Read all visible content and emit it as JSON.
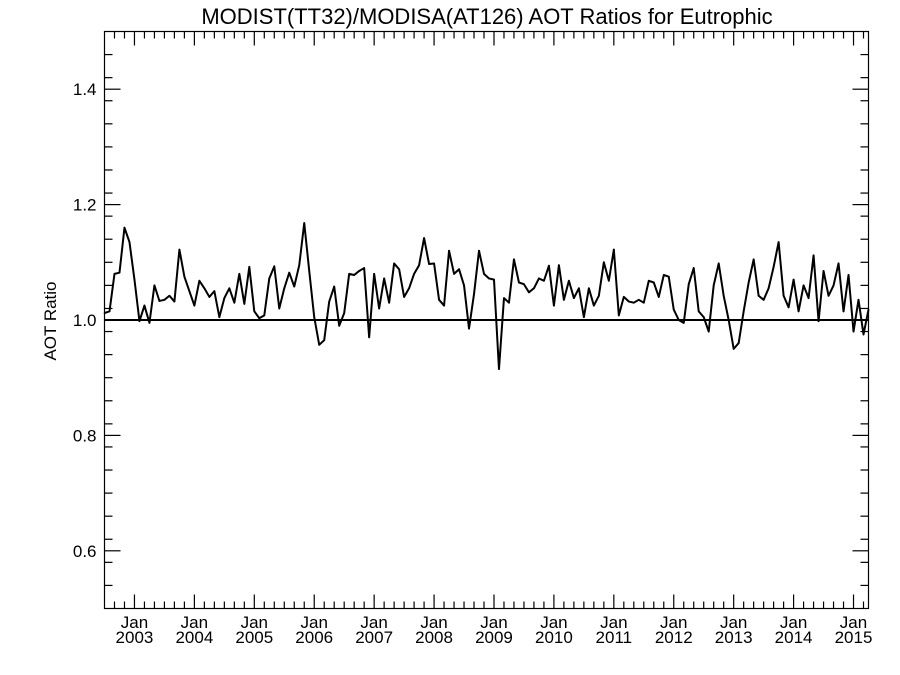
{
  "chart_data": {
    "type": "line",
    "title": "MODIST(TT32)/MODISA(AT126)  AOT Ratios for Eutrophic",
    "xlabel": "",
    "ylabel": "AOT Ratio",
    "xlim": [
      "2002-07",
      "2015-04"
    ],
    "ylim": [
      0.5,
      1.5
    ],
    "grid": false,
    "reference_line": 1.0,
    "y_ticks": [
      {
        "value": 0.6,
        "label": "0.6"
      },
      {
        "value": 0.8,
        "label": "0.8"
      },
      {
        "value": 1.0,
        "label": "1.0"
      },
      {
        "value": 1.2,
        "label": "1.2"
      },
      {
        "value": 1.4,
        "label": "1.4"
      }
    ],
    "x_ticks": [
      {
        "value": "2003-01",
        "month": "Jan",
        "year": "2003"
      },
      {
        "value": "2004-01",
        "month": "Jan",
        "year": "2004"
      },
      {
        "value": "2005-01",
        "month": "Jan",
        "year": "2005"
      },
      {
        "value": "2006-01",
        "month": "Jan",
        "year": "2006"
      },
      {
        "value": "2007-01",
        "month": "Jan",
        "year": "2007"
      },
      {
        "value": "2008-01",
        "month": "Jan",
        "year": "2008"
      },
      {
        "value": "2009-01",
        "month": "Jan",
        "year": "2009"
      },
      {
        "value": "2010-01",
        "month": "Jan",
        "year": "2010"
      },
      {
        "value": "2011-01",
        "month": "Jan",
        "year": "2011"
      },
      {
        "value": "2012-01",
        "month": "Jan",
        "year": "2012"
      },
      {
        "value": "2013-01",
        "month": "Jan",
        "year": "2013"
      },
      {
        "value": "2014-01",
        "month": "Jan",
        "year": "2014"
      },
      {
        "value": "2015-01",
        "month": "Jan",
        "year": "2015"
      }
    ],
    "series": [
      {
        "start": "2002-07",
        "values": [
          1.012,
          1.015,
          1.08,
          1.082,
          1.16,
          1.135,
          1.07,
          0.998,
          1.025,
          0.995,
          1.06,
          1.033,
          1.035,
          1.042,
          1.032,
          1.122,
          1.075,
          1.05,
          1.025,
          1.068,
          1.055,
          1.04,
          1.05,
          1.005,
          1.038,
          1.055,
          1.03,
          1.08,
          1.028,
          1.092,
          1.015,
          1.003,
          1.008,
          1.072,
          1.093,
          1.02,
          1.055,
          1.082,
          1.058,
          1.095,
          1.168,
          1.085,
          1.005,
          0.957,
          0.965,
          1.032,
          1.058,
          0.99,
          1.012,
          1.08,
          1.078,
          1.085,
          1.09,
          0.97,
          1.08,
          1.02,
          1.072,
          1.03,
          1.098,
          1.088,
          1.04,
          1.055,
          1.08,
          1.095,
          1.142,
          1.097,
          1.098,
          1.035,
          1.025,
          1.12,
          1.08,
          1.088,
          1.06,
          0.985,
          1.045,
          1.12,
          1.08,
          1.072,
          1.07,
          0.915,
          1.038,
          1.03,
          1.105,
          1.065,
          1.062,
          1.048,
          1.055,
          1.072,
          1.068,
          1.094,
          1.025,
          1.095,
          1.035,
          1.068,
          1.038,
          1.055,
          1.005,
          1.055,
          1.025,
          1.042,
          1.1,
          1.068,
          1.122,
          1.008,
          1.04,
          1.032,
          1.03,
          1.035,
          1.03,
          1.068,
          1.065,
          1.04,
          1.078,
          1.075,
          1.018,
          1.0,
          0.995,
          1.062,
          1.09,
          1.015,
          1.005,
          0.98,
          1.06,
          1.098,
          1.042,
          1.0,
          0.95,
          0.96,
          1.015,
          1.065,
          1.105,
          1.042,
          1.035,
          1.055,
          1.092,
          1.135,
          1.042,
          1.022,
          1.07,
          1.015,
          1.06,
          1.038,
          1.112,
          0.998,
          1.085,
          1.042,
          1.06,
          1.098,
          1.015,
          1.078,
          0.98,
          1.035,
          0.975,
          1.018
        ]
      }
    ]
  }
}
